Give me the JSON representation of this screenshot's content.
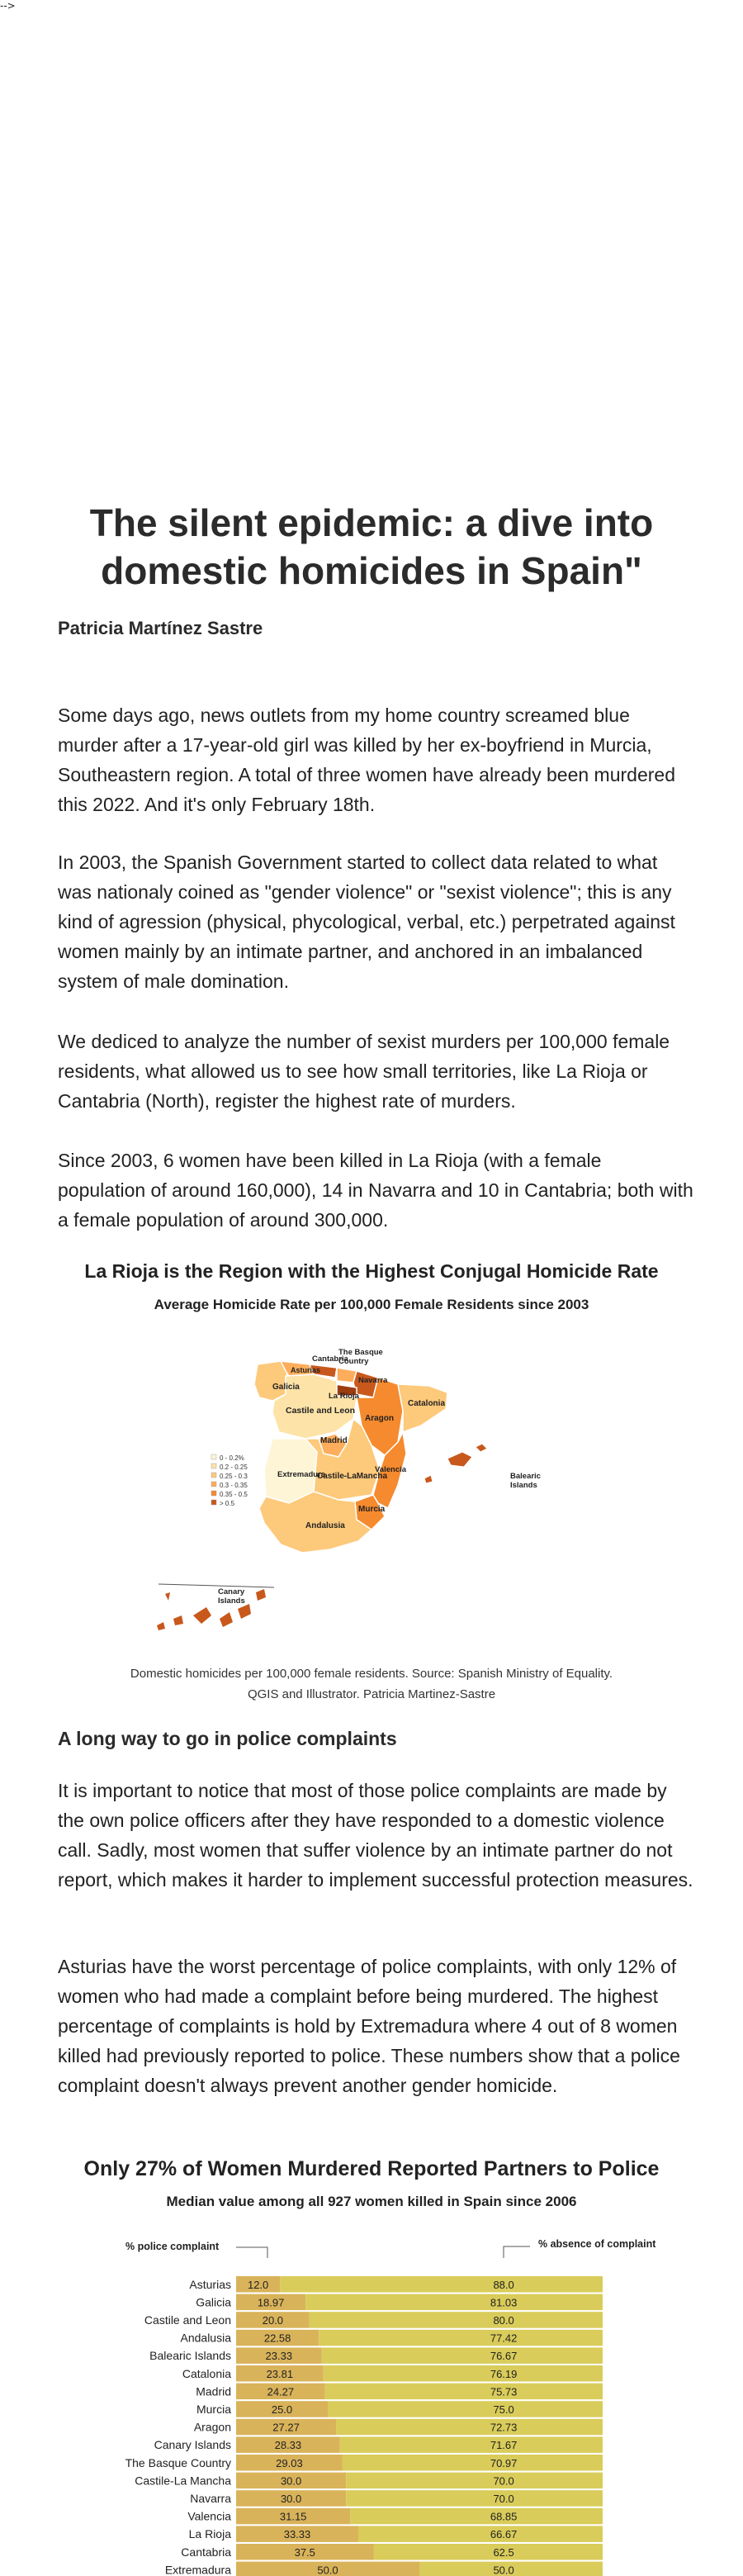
{
  "stray_text": "-->",
  "article": {
    "title": "The silent epidemic: a dive into domestic homicides in Spain\"",
    "author": "Patricia Martínez Sastre",
    "paragraphs": [
      "Some days ago, news outlets from my home country screamed blue murder after a 17-year-old girl was killed by her ex-boyfriend in Murcia, Southeastern region. A total of three women have already been murdered this 2022. And it's only February 18th.",
      "In 2003, the Spanish Government started to collect data related to what was nationaly coined as \"gender violence\" or \"sexist violence\"; this is any kind of agression (physical, phycological, verbal, etc.) perpetrated against women mainly by an intimate partner, and anchored in an imbalanced system of male domination.",
      "We dediced to analyze the number of sexist murders per 100,000 female residents, what allowed us to see how small territories, like La Rioja or Cantabria (North), register the highest rate of murders.",
      "Since 2003, 6 women have been killed in La Rioja (with a female population of around 160,000), 14 in Navarra and 10 in Cantabria; both with a female population of around 300,000."
    ],
    "section2_heading": "A long way to go in police complaints",
    "section2_paragraphs": [
      "It is important to notice that most of those police complaints are made by the own police officers after they have responded to a domestic violence call. Sadly, most women that suffer violence by an intimate partner do not report, which makes it harder to implement successful protection measures.",
      "Asturias have the worst percentage of police complaints, with only 12% of women who had made a complaint before being murdered. The highest percentage of complaints is hold by Extremadura where 4 out of 8 women killed had previously reported to police. These numbers show that a police complaint doesn't always prevent another gender homicide."
    ]
  },
  "map_figure": {
    "title": "La Rioja is the Region with the Highest Conjugal Homicide Rate",
    "subtitle": "Average Homicide Rate per 100,000 Female Residents since 2003",
    "caption_line1": "Domestic homicides per 100,000 female residents. Source: Spanish Ministry of Equality.",
    "caption_line2": "QGIS and Illustrator. Patricia Martinez-Sastre",
    "legend": [
      "0 - 0.2%",
      "0.2 - 0.25",
      "0.25 - 0.3",
      "0.3 - 0.35",
      "0.35 - 0.5",
      "> 0.5"
    ],
    "legend_colors": [
      "#fdf5d6",
      "#fde3a7",
      "#fdc97a",
      "#fdad5b",
      "#f58a2e",
      "#c8581c"
    ],
    "region_labels": {
      "galicia": "Galicia",
      "asturias": "Asturias",
      "cantabria": "Cantabria",
      "basque": "The Basque Country",
      "navarra": "Navarra",
      "larioja": "La Rioja",
      "catalonia": "Catalonia",
      "castile_leon": "Castile and Leon",
      "aragon": "Aragon",
      "madrid": "Madrid",
      "extremadura": "Extremadura",
      "castile_lamancha": "Castile-LaMancha",
      "valencia": "Valencia",
      "balearic": "Balearic Islands",
      "murcia": "Murcia",
      "andalusia": "Andalusia",
      "canary": "Canary Islands"
    }
  },
  "chart_data": {
    "type": "bar",
    "title": "Only 27% of Women Murdered Reported Partners to Police",
    "subtitle": "Median value among all 927 women killed in Spain since 2006",
    "left_label": "% police complaint",
    "right_label": "% absence of complaint",
    "stacked": true,
    "xlim": [
      0,
      100
    ],
    "colors": {
      "complaint": "#d9b35a",
      "absence": "#d9cc5a"
    },
    "categories": [
      "Asturias",
      "Galicia",
      "Castile and Leon",
      "Andalusia",
      "Balearic Islands",
      "Catalonia",
      "Madrid",
      "Murcia",
      "Aragon",
      "Canary Islands",
      "The Basque Country",
      "Castile-La Mancha",
      "Navarra",
      "Valencia",
      "La Rioja",
      "Cantabria",
      "Extremadura"
    ],
    "series": [
      {
        "name": "% police complaint",
        "values": [
          12.0,
          18.97,
          20.0,
          22.58,
          23.33,
          23.81,
          24.27,
          25.0,
          27.27,
          28.33,
          29.03,
          30.0,
          30.0,
          31.15,
          33.33,
          37.5,
          50.0
        ]
      },
      {
        "name": "% absence of complaint",
        "values": [
          88.0,
          81.03,
          80.0,
          77.42,
          76.67,
          76.19,
          75.73,
          75.0,
          72.73,
          71.67,
          70.97,
          70.0,
          70.0,
          68.85,
          66.67,
          62.5,
          50.0
        ]
      }
    ],
    "complaint_labels": [
      "12.0",
      "18.97",
      "20.0",
      "22.58",
      "23.33",
      "23.81",
      "24.27",
      "25.0",
      "27.27",
      "28.33",
      "29.03",
      "30.0",
      "30.0",
      "31.15",
      "33.33",
      "37.5",
      "50.0"
    ],
    "absence_labels": [
      "88.0",
      "81.03",
      "80.0",
      "77.42",
      "76.67",
      "76.19",
      "75.73",
      "75.0",
      "72.73",
      "71.67",
      "70.97",
      "70.0",
      "70.0",
      "68.85",
      "66.67",
      "62.5",
      "50.0"
    ]
  }
}
